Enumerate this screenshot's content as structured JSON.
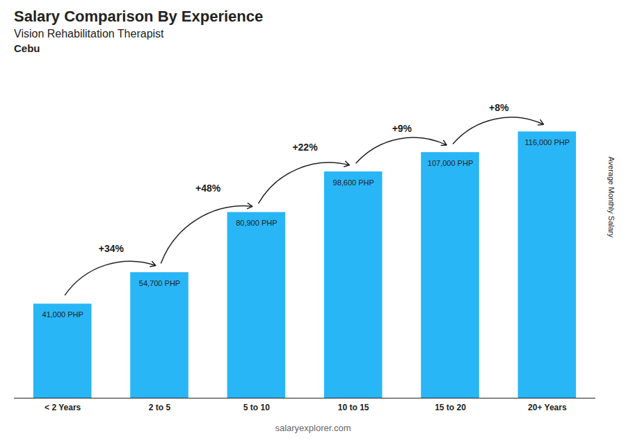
{
  "chart_data": {
    "type": "bar",
    "title": "Salary Comparison By Experience",
    "subtitle": "Vision Rehabilitation Therapist",
    "annotations": [
      "Cebu",
      "salaryexplorer.com"
    ],
    "ylabel": "Average Monthly Salary",
    "categories": [
      "< 2 Years",
      "2 to 5",
      "5 to 10",
      "10 to 15",
      "15 to 20",
      "20+ Years"
    ],
    "values": [
      41000,
      54700,
      80900,
      98600,
      107000,
      116000
    ],
    "value_labels": [
      "41,000 PHP",
      "54,700 PHP",
      "80,900 PHP",
      "98,600 PHP",
      "107,000 PHP",
      "116,000 PHP"
    ],
    "data_labels": true,
    "change_labels": [
      "+34%",
      "+48%",
      "+22%",
      "+9%",
      "+8%"
    ],
    "color": "#29B6F6",
    "ylim": [
      0,
      140000
    ],
    "grid": false,
    "tick_labels": "x"
  }
}
